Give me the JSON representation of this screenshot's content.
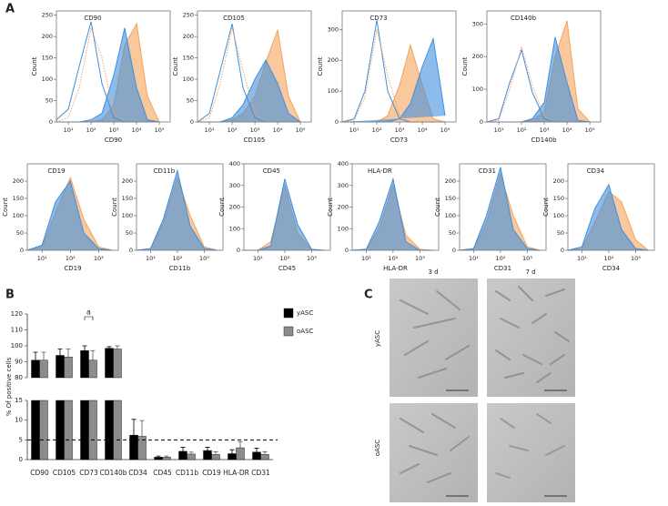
{
  "panel_labels": [
    "A",
    "B",
    "C"
  ],
  "chart_data": [
    {
      "type": "area",
      "title": "CD90",
      "xlabel": "CD90",
      "ylabel": "Count",
      "xscale": "log",
      "x": [
        3,
        10,
        30,
        100,
        300,
        1000,
        3000,
        10000,
        30000,
        100000
      ],
      "xlim": [
        3,
        300000
      ],
      "xticks": [
        {
          "value": 10,
          "label": "10¹"
        },
        {
          "value": 100,
          "label": "10²"
        },
        {
          "value": 1000,
          "label": "10³"
        },
        {
          "value": 10000,
          "label": "10⁴"
        },
        {
          "value": 100000,
          "label": "10⁵"
        }
      ],
      "ylim": [
        0,
        260
      ],
      "yticks": [
        0,
        50,
        100,
        150,
        200,
        250
      ],
      "series": [
        {
          "color": "#f5a35c",
          "style": "fill",
          "values": [
            0,
            0,
            0,
            0,
            5,
            40,
            180,
            230,
            60,
            0
          ]
        },
        {
          "color": "#3f8fe0",
          "style": "fill",
          "values": [
            0,
            0,
            0,
            5,
            20,
            110,
            220,
            80,
            5,
            0
          ]
        },
        {
          "color": "#3f8fe0",
          "style": "outline",
          "values": [
            5,
            30,
            130,
            235,
            90,
            10,
            0,
            0,
            0,
            0
          ]
        },
        {
          "color": "#f5a35c",
          "style": "dotted",
          "values": [
            0,
            10,
            80,
            220,
            150,
            20,
            0,
            0,
            0,
            0
          ]
        }
      ]
    },
    {
      "type": "area",
      "title": "CD105",
      "xlabel": "CD105",
      "ylabel": "Count",
      "xscale": "log",
      "x": [
        3,
        10,
        30,
        100,
        300,
        1000,
        3000,
        10000,
        30000,
        100000
      ],
      "xlim": [
        3,
        300000
      ],
      "xticks": [
        {
          "value": 10,
          "label": "10¹"
        },
        {
          "value": 100,
          "label": "10²"
        },
        {
          "value": 1000,
          "label": "10³"
        },
        {
          "value": 10000,
          "label": "10⁴"
        },
        {
          "value": 100000,
          "label": "10⁵"
        }
      ],
      "ylim": [
        0,
        260
      ],
      "yticks": [
        0,
        50,
        100,
        150,
        200,
        250
      ],
      "series": [
        {
          "color": "#f5a35c",
          "style": "fill",
          "values": [
            0,
            0,
            0,
            5,
            20,
            60,
            140,
            215,
            60,
            0
          ]
        },
        {
          "color": "#3f8fe0",
          "style": "fill",
          "values": [
            0,
            0,
            0,
            10,
            40,
            100,
            145,
            90,
            20,
            0
          ]
        },
        {
          "color": "#3f8fe0",
          "style": "outline",
          "values": [
            0,
            20,
            120,
            230,
            80,
            10,
            0,
            0,
            0,
            0
          ]
        },
        {
          "color": "#f5a35c",
          "style": "dotted",
          "values": [
            0,
            10,
            90,
            220,
            120,
            20,
            0,
            0,
            0,
            0
          ]
        }
      ]
    },
    {
      "type": "area",
      "title": "CD73",
      "xlabel": "CD73",
      "ylabel": "Count",
      "xscale": "log",
      "x": [
        3,
        10,
        30,
        100,
        300,
        1000,
        3000,
        10000,
        30000,
        100000
      ],
      "xlim": [
        3,
        300000
      ],
      "xticks": [
        {
          "value": 10,
          "label": "10¹"
        },
        {
          "value": 100,
          "label": "10²"
        },
        {
          "value": 1000,
          "label": "10³"
        },
        {
          "value": 10000,
          "label": "10⁴"
        },
        {
          "value": 100000,
          "label": "10⁵"
        }
      ],
      "ylim": [
        0,
        360
      ],
      "yticks": [
        0,
        100,
        200,
        300
      ],
      "series": [
        {
          "color": "#f5a35c",
          "style": "fill",
          "values": [
            0,
            0,
            0,
            0,
            20,
            120,
            250,
            120,
            10,
            0
          ]
        },
        {
          "color": "#3f8fe0",
          "style": "fill",
          "values": [
            0,
            0,
            0,
            0,
            0,
            10,
            60,
            180,
            270,
            20
          ]
        },
        {
          "color": "#3f8fe0",
          "style": "outline",
          "values": [
            0,
            10,
            100,
            330,
            100,
            10,
            0,
            0,
            0,
            0
          ]
        },
        {
          "color": "#f5a35c",
          "style": "dotted",
          "values": [
            0,
            5,
            80,
            300,
            150,
            20,
            0,
            0,
            0,
            0
          ]
        }
      ]
    },
    {
      "type": "area",
      "title": "CD140b",
      "xlabel": "CD140b",
      "ylabel": "Count",
      "xscale": "log",
      "x": [
        3,
        10,
        30,
        100,
        300,
        1000,
        3000,
        10000,
        30000,
        100000
      ],
      "xlim": [
        3,
        300000
      ],
      "xticks": [
        {
          "value": 10,
          "label": "10¹"
        },
        {
          "value": 100,
          "label": "10²"
        },
        {
          "value": 1000,
          "label": "10³"
        },
        {
          "value": 10000,
          "label": "10⁴"
        },
        {
          "value": 100000,
          "label": "10⁵"
        }
      ],
      "ylim": [
        0,
        340
      ],
      "yticks": [
        0,
        100,
        200,
        300
      ],
      "series": [
        {
          "color": "#f5a35c",
          "style": "fill",
          "values": [
            0,
            0,
            0,
            0,
            5,
            30,
            200,
            310,
            40,
            0
          ]
        },
        {
          "color": "#3f8fe0",
          "style": "fill",
          "values": [
            0,
            0,
            0,
            0,
            10,
            60,
            260,
            120,
            5,
            0
          ]
        },
        {
          "color": "#3f8fe0",
          "style": "outline",
          "values": [
            0,
            10,
            120,
            220,
            90,
            10,
            0,
            0,
            0,
            0
          ]
        },
        {
          "color": "#f5a35c",
          "style": "dotted",
          "values": [
            0,
            5,
            100,
            230,
            110,
            15,
            0,
            0,
            0,
            0
          ]
        }
      ]
    },
    {
      "type": "area",
      "title": "CD19",
      "xlabel": "CD19",
      "ylabel": "Count",
      "xscale": "log",
      "x": [
        3,
        10,
        30,
        100,
        300,
        1000,
        3000
      ],
      "xlim": [
        3,
        5000
      ],
      "xticks": [
        {
          "value": 10,
          "label": "10¹"
        },
        {
          "value": 100,
          "label": "10²"
        },
        {
          "value": 1000,
          "label": "10³"
        }
      ],
      "ylim": [
        0,
        250
      ],
      "yticks": [
        0,
        50,
        100,
        150,
        200
      ],
      "series": [
        {
          "color": "#f5a35c",
          "style": "fill",
          "values": [
            0,
            10,
            110,
            210,
            90,
            10,
            0
          ]
        },
        {
          "color": "#3f8fe0",
          "style": "fill",
          "values": [
            0,
            15,
            140,
            200,
            50,
            5,
            0
          ]
        }
      ]
    },
    {
      "type": "area",
      "title": "CD11b",
      "xlabel": "CD11b",
      "ylabel": "Count",
      "xscale": "log",
      "x": [
        3,
        10,
        30,
        100,
        300,
        1000,
        3000
      ],
      "xlim": [
        3,
        5000
      ],
      "xticks": [
        {
          "value": 10,
          "label": "10¹"
        },
        {
          "value": 100,
          "label": "10²"
        },
        {
          "value": 1000,
          "label": "10³"
        }
      ],
      "ylim": [
        0,
        250
      ],
      "yticks": [
        0,
        50,
        100,
        150,
        200
      ],
      "series": [
        {
          "color": "#f5a35c",
          "style": "fill",
          "values": [
            0,
            5,
            80,
            210,
            100,
            10,
            0
          ]
        },
        {
          "color": "#3f8fe0",
          "style": "fill",
          "values": [
            0,
            5,
            90,
            230,
            70,
            5,
            0
          ]
        }
      ]
    },
    {
      "type": "area",
      "title": "CD45",
      "xlabel": "CD45",
      "ylabel": "Count",
      "xscale": "log",
      "x": [
        3,
        10,
        30,
        100,
        300,
        1000,
        3000
      ],
      "xlim": [
        3,
        5000
      ],
      "xticks": [
        {
          "value": 10,
          "label": "10¹"
        },
        {
          "value": 100,
          "label": "10²"
        },
        {
          "value": 1000,
          "label": "10³"
        }
      ],
      "ylim": [
        0,
        400
      ],
      "yticks": [
        0,
        100,
        200,
        300,
        400
      ],
      "series": [
        {
          "color": "#f5a35c",
          "style": "fill",
          "values": [
            0,
            0,
            40,
            300,
            80,
            3,
            0
          ]
        },
        {
          "color": "#3f8fe0",
          "style": "fill",
          "values": [
            0,
            0,
            20,
            330,
            120,
            5,
            0
          ]
        }
      ]
    },
    {
      "type": "area",
      "title": "HLA-DR",
      "xlabel": "HLA-DR",
      "ylabel": "Count",
      "xscale": "log",
      "x": [
        3,
        10,
        30,
        100,
        300,
        1000,
        3000
      ],
      "xlim": [
        3,
        5000
      ],
      "xticks": [
        {
          "value": 10,
          "label": "10¹"
        },
        {
          "value": 100,
          "label": "10²"
        },
        {
          "value": 1000,
          "label": "10³"
        }
      ],
      "ylim": [
        0,
        400
      ],
      "yticks": [
        0,
        100,
        200,
        300,
        400
      ],
      "series": [
        {
          "color": "#f5a35c",
          "style": "fill",
          "values": [
            0,
            5,
            100,
            300,
            70,
            5,
            0
          ]
        },
        {
          "color": "#3f8fe0",
          "style": "fill",
          "values": [
            0,
            5,
            130,
            330,
            40,
            0,
            0
          ]
        }
      ]
    },
    {
      "type": "area",
      "title": "CD31",
      "xlabel": "CD31",
      "ylabel": "Count",
      "xscale": "log",
      "x": [
        3,
        10,
        30,
        100,
        300,
        1000,
        3000
      ],
      "xlim": [
        3,
        5000
      ],
      "xticks": [
        {
          "value": 10,
          "label": "10¹"
        },
        {
          "value": 100,
          "label": "10²"
        },
        {
          "value": 1000,
          "label": "10³"
        }
      ],
      "ylim": [
        0,
        250
      ],
      "yticks": [
        0,
        50,
        100,
        150,
        200
      ],
      "series": [
        {
          "color": "#f5a35c",
          "style": "fill",
          "values": [
            0,
            5,
            80,
            220,
            100,
            10,
            0
          ]
        },
        {
          "color": "#3f8fe0",
          "style": "fill",
          "values": [
            0,
            5,
            100,
            240,
            60,
            5,
            0
          ]
        }
      ]
    },
    {
      "type": "area",
      "title": "CD34",
      "xlabel": "CD34",
      "ylabel": "Count",
      "xscale": "log",
      "x": [
        3,
        10,
        30,
        100,
        300,
        1000,
        3000
      ],
      "xlim": [
        3,
        5000
      ],
      "xticks": [
        {
          "value": 10,
          "label": "10¹"
        },
        {
          "value": 100,
          "label": "10²"
        },
        {
          "value": 1000,
          "label": "10³"
        }
      ],
      "ylim": [
        0,
        250
      ],
      "yticks": [
        0,
        50,
        100,
        150,
        200
      ],
      "series": [
        {
          "color": "#f5a35c",
          "style": "fill",
          "values": [
            0,
            5,
            80,
            170,
            140,
            30,
            0
          ]
        },
        {
          "color": "#3f8fe0",
          "style": "fill",
          "values": [
            0,
            10,
            120,
            190,
            60,
            5,
            0
          ]
        }
      ]
    },
    {
      "type": "bar",
      "ylabel": "% Of positive cells",
      "categories": [
        "CD90",
        "CD105",
        "CD73",
        "CD140b",
        "CD34",
        "CD45",
        "CD11b",
        "CD19",
        "HLA-DR",
        "CD31"
      ],
      "series": [
        {
          "name": "yASC",
          "color": "#000000",
          "values": [
            91,
            94,
            97,
            98.5,
            6.2,
            0.6,
            2.1,
            2.3,
            1.5,
            1.9
          ],
          "errors": [
            5,
            4,
            3,
            1,
            4,
            0.3,
            1,
            0.8,
            1,
            1
          ]
        },
        {
          "name": "oASC",
          "color": "#8c8c8c",
          "values": [
            91,
            93,
            91,
            98,
            5.9,
            0.6,
            1.4,
            1.3,
            3,
            1.3
          ],
          "errors": [
            5,
            5,
            6,
            2,
            4,
            0.3,
            0.5,
            0.7,
            1.5,
            0.7
          ]
        }
      ],
      "ylim": [
        0,
        120
      ],
      "ybreak": [
        15,
        80
      ],
      "yticks": [
        0,
        5,
        10,
        15,
        80,
        90,
        100,
        110,
        120
      ],
      "reference_line": 5,
      "legend": "right",
      "annotation": {
        "text": "a",
        "category": "CD73"
      }
    }
  ],
  "micrographs": {
    "columns": [
      "3 d",
      "7 d"
    ],
    "rows": [
      "yASC",
      "oASC"
    ]
  }
}
